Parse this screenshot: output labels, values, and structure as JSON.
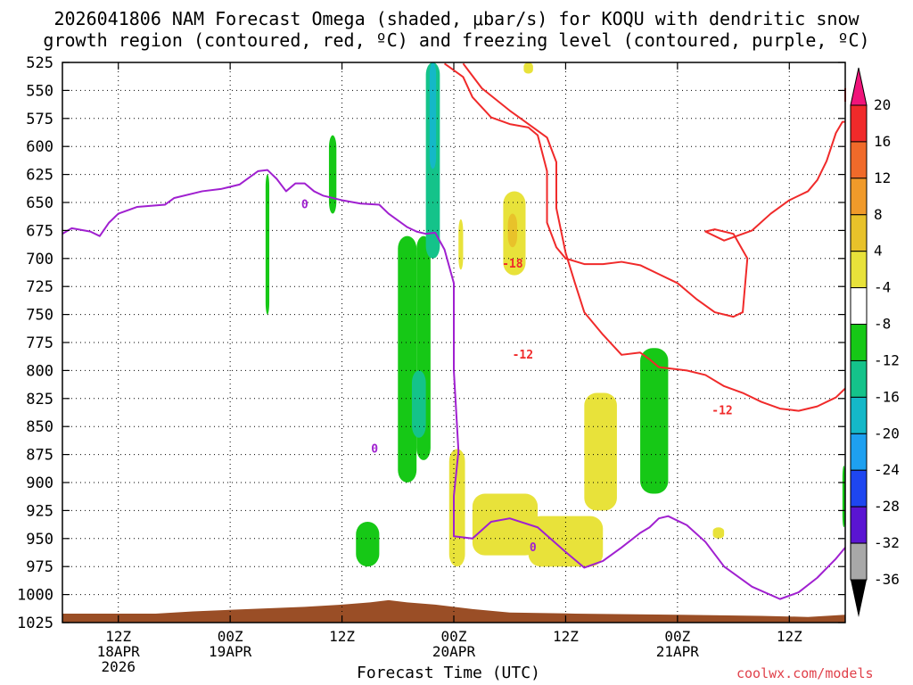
{
  "title": {
    "line1": "2026041806 NAM Forecast Omega (shaded, μbar/s) for KOQU with dendritic snow",
    "line2": "growth region (contoured, red, ºC) and freezing level (contoured, purple, ºC)"
  },
  "xaxis_title": "Forecast Time (UTC)",
  "credit": "coolwx.com/models",
  "chart_data": {
    "type": "heatmap",
    "station": "KOQU",
    "run": "2026041806",
    "model": "NAM",
    "x_hours_range": [
      0,
      84
    ],
    "y_pressure_levels": [
      "525",
      "550",
      "575",
      "600",
      "625",
      "650",
      "675",
      "700",
      "725",
      "750",
      "775",
      "800",
      "825",
      "850",
      "875",
      "900",
      "925",
      "950",
      "975",
      "1000",
      "1025"
    ],
    "x_ticks": [
      {
        "hour": 6,
        "lines": [
          "12Z",
          "18APR",
          "2026"
        ]
      },
      {
        "hour": 18,
        "lines": [
          "00Z",
          "19APR"
        ]
      },
      {
        "hour": 30,
        "lines": [
          "12Z"
        ]
      },
      {
        "hour": 42,
        "lines": [
          "00Z",
          "20APR"
        ]
      },
      {
        "hour": 54,
        "lines": [
          "12Z"
        ]
      },
      {
        "hour": 66,
        "lines": [
          "00Z",
          "21APR"
        ]
      },
      {
        "hour": 78,
        "lines": [
          "12Z"
        ]
      }
    ],
    "colorbar": {
      "labels": [
        "20",
        "16",
        "12",
        "8",
        "4",
        "-4",
        "-8",
        "-12",
        "-16",
        "-20",
        "-24",
        "-28",
        "-32",
        "-36"
      ],
      "colors": [
        "#f02a2a",
        "#f06a2a",
        "#f09a2a",
        "#e8c22a",
        "#e8e23a",
        "#ffffff",
        "#16c816",
        "#14c38a",
        "#14b8c8",
        "#1ea0f0",
        "#1e46f0",
        "#5a14d2",
        "#a014c8",
        "#a8a8a8"
      ],
      "top_arrow_color": "#f0147a",
      "bottom_arrow_color": "#000000"
    },
    "contour_labels": {
      "freezing_level": [
        "0",
        "0",
        "0"
      ],
      "dendritic": [
        "-18",
        "-12",
        "-12"
      ]
    },
    "series": [
      {
        "name": "freezing level 0°C (purple)",
        "color": "#a020d0",
        "points": [
          [
            0,
            678
          ],
          [
            1,
            673
          ],
          [
            3,
            676
          ],
          [
            4,
            680
          ],
          [
            5,
            668
          ],
          [
            6,
            660
          ],
          [
            8,
            654
          ],
          [
            11,
            652
          ],
          [
            12,
            646
          ],
          [
            15,
            640
          ],
          [
            17,
            638
          ],
          [
            19,
            634
          ],
          [
            21,
            622
          ],
          [
            22,
            621
          ],
          [
            23,
            629
          ],
          [
            24,
            640
          ],
          [
            25,
            633
          ],
          [
            26,
            633
          ],
          [
            27,
            640
          ],
          [
            28,
            644
          ],
          [
            30,
            648
          ],
          [
            32,
            651
          ],
          [
            34,
            652
          ],
          [
            35,
            660
          ],
          [
            37,
            672
          ],
          [
            38,
            676
          ],
          [
            39,
            678
          ],
          [
            40,
            677
          ],
          [
            41,
            692
          ],
          [
            42,
            722
          ],
          [
            42,
            800
          ],
          [
            42.5,
            872
          ],
          [
            42,
            912
          ],
          [
            42,
            948
          ],
          [
            44,
            950
          ],
          [
            46,
            935
          ],
          [
            48,
            932
          ],
          [
            51,
            940
          ],
          [
            54,
            962
          ],
          [
            56,
            976
          ],
          [
            58,
            970
          ],
          [
            60,
            958
          ],
          [
            62,
            945
          ],
          [
            63,
            940
          ],
          [
            64,
            932
          ],
          [
            65,
            930
          ],
          [
            67,
            938
          ],
          [
            69,
            953
          ],
          [
            71,
            975
          ],
          [
            74,
            993
          ],
          [
            77,
            1004
          ],
          [
            79,
            998
          ],
          [
            81,
            985
          ],
          [
            83,
            968
          ],
          [
            84,
            958
          ]
        ]
      },
      {
        "name": "-12°C contour (red, outer)",
        "color": "#f02a2a",
        "points": [
          [
            43,
            526
          ],
          [
            45,
            548
          ],
          [
            48,
            568
          ],
          [
            50,
            580
          ],
          [
            52,
            592
          ],
          [
            53,
            614
          ],
          [
            53,
            655
          ],
          [
            54,
            695
          ],
          [
            55,
            722
          ],
          [
            56,
            748
          ],
          [
            58,
            768
          ],
          [
            60,
            786
          ],
          [
            62,
            784
          ],
          [
            63,
            790
          ],
          [
            64,
            797
          ],
          [
            65,
            798
          ],
          [
            67,
            800
          ],
          [
            69,
            804
          ],
          [
            71,
            814
          ],
          [
            73,
            820
          ],
          [
            75,
            828
          ],
          [
            77,
            834
          ],
          [
            79,
            836
          ],
          [
            81,
            832
          ],
          [
            83,
            824
          ],
          [
            84,
            816
          ]
        ]
      },
      {
        "name": "-18°C contour (red, inner)",
        "color": "#f02a2a",
        "points": [
          [
            41,
            526
          ],
          [
            43,
            538
          ],
          [
            44,
            556
          ],
          [
            46,
            574
          ],
          [
            48,
            580
          ],
          [
            50,
            583
          ],
          [
            51,
            590
          ],
          [
            52,
            622
          ],
          [
            52,
            668
          ],
          [
            53,
            690
          ],
          [
            54,
            700
          ],
          [
            56,
            705
          ],
          [
            58,
            705
          ],
          [
            60,
            703
          ],
          [
            62,
            706
          ],
          [
            64,
            714
          ],
          [
            66,
            722
          ],
          [
            68,
            736
          ],
          [
            70,
            748
          ],
          [
            72,
            752
          ],
          [
            73,
            748
          ],
          [
            73.5,
            700
          ],
          [
            72,
            678
          ],
          [
            70,
            674
          ],
          [
            69,
            676
          ],
          [
            71,
            684
          ],
          [
            74,
            675
          ],
          [
            76,
            660
          ],
          [
            78,
            648
          ],
          [
            80,
            640
          ],
          [
            81,
            630
          ],
          [
            82,
            613
          ],
          [
            83,
            588
          ],
          [
            83.7,
            578
          ],
          [
            84,
            578
          ]
        ]
      },
      {
        "name": "-12°C contour (red, right edge)",
        "color": "#f02a2a",
        "points": [
          [
            84,
            560
          ],
          [
            84,
            548
          ]
        ]
      }
    ],
    "shaded_regions": [
      {
        "label": "-4 to -8",
        "color": "#16c816",
        "hours": [
          21.8,
          22.2
        ],
        "p_range": [
          625,
          750
        ]
      },
      {
        "label": "-4 to -8",
        "color": "#16c816",
        "hours": [
          28.6,
          29.4
        ],
        "p_range": [
          590,
          660
        ]
      },
      {
        "label": "-4 to -8",
        "color": "#16c816",
        "hours": [
          36.0,
          38.0
        ],
        "p_range": [
          680,
          900
        ]
      },
      {
        "label": "-4 to -8",
        "color": "#16c816",
        "hours": [
          38.0,
          39.5
        ],
        "p_range": [
          680,
          880
        ]
      },
      {
        "label": "-8 to -12",
        "color": "#14c38a",
        "hours": [
          37.5,
          39.0
        ],
        "p_range": [
          800,
          860
        ]
      },
      {
        "label": "-8 to -16",
        "color": "#14c38a",
        "hours": [
          39.0,
          40.5
        ],
        "p_range": [
          525,
          700
        ]
      },
      {
        "label": "-12 to -16",
        "color": "#14b8c8",
        "hours": [
          39.4,
          40.1
        ],
        "p_range": [
          525,
          620
        ]
      },
      {
        "label": "-4 to -8",
        "color": "#16c816",
        "hours": [
          31.5,
          34.0
        ],
        "p_range": [
          935,
          975
        ]
      },
      {
        "label": "-4 to -8",
        "color": "#16c816",
        "hours": [
          62.0,
          65.0
        ],
        "p_range": [
          780,
          910
        ]
      },
      {
        "label": "-4 to -8",
        "color": "#16c816",
        "hours": [
          83.7,
          84.0
        ],
        "p_range": [
          885,
          940
        ]
      },
      {
        "label": "4 to 8",
        "color": "#e8e23a",
        "hours": [
          41.5,
          43.2
        ],
        "p_range": [
          870,
          975
        ]
      },
      {
        "label": "4 to 8",
        "color": "#e8e23a",
        "hours": [
          44.0,
          51.0
        ],
        "p_range": [
          910,
          965
        ]
      },
      {
        "label": "4 to 8",
        "color": "#e8e23a",
        "hours": [
          50.0,
          58.0
        ],
        "p_range": [
          930,
          975
        ]
      },
      {
        "label": "4 to 8",
        "color": "#e8e23a",
        "hours": [
          56.0,
          59.5
        ],
        "p_range": [
          820,
          925
        ]
      },
      {
        "label": "4 to 8",
        "color": "#e8e23a",
        "hours": [
          47.3,
          49.7
        ],
        "p_range": [
          640,
          715
        ]
      },
      {
        "label": "8 to 12",
        "color": "#e8c22a",
        "hours": [
          47.8,
          48.8
        ],
        "p_range": [
          660,
          690
        ]
      },
      {
        "label": "4 to 8",
        "color": "#e8e23a",
        "hours": [
          42.5,
          43.0
        ],
        "p_range": [
          665,
          710
        ]
      },
      {
        "label": "4 to 8",
        "color": "#e8e23a",
        "hours": [
          49.5,
          50.5
        ],
        "p_range": [
          525,
          535
        ]
      },
      {
        "label": "4 to 8",
        "color": "#e8e23a",
        "hours": [
          69.8,
          71.0
        ],
        "p_range": [
          940,
          950
        ]
      }
    ],
    "surface_terrain": {
      "color": "#9a4e26",
      "pressure_by_hour": [
        [
          0,
          1017
        ],
        [
          10,
          1017
        ],
        [
          14,
          1015
        ],
        [
          20,
          1013
        ],
        [
          26,
          1011
        ],
        [
          30,
          1009
        ],
        [
          33,
          1007
        ],
        [
          35,
          1005
        ],
        [
          37,
          1007
        ],
        [
          40,
          1009
        ],
        [
          44,
          1013
        ],
        [
          48,
          1016
        ],
        [
          55,
          1017
        ],
        [
          66,
          1018
        ],
        [
          75,
          1019
        ],
        [
          80,
          1020
        ],
        [
          84,
          1018
        ]
      ]
    }
  }
}
